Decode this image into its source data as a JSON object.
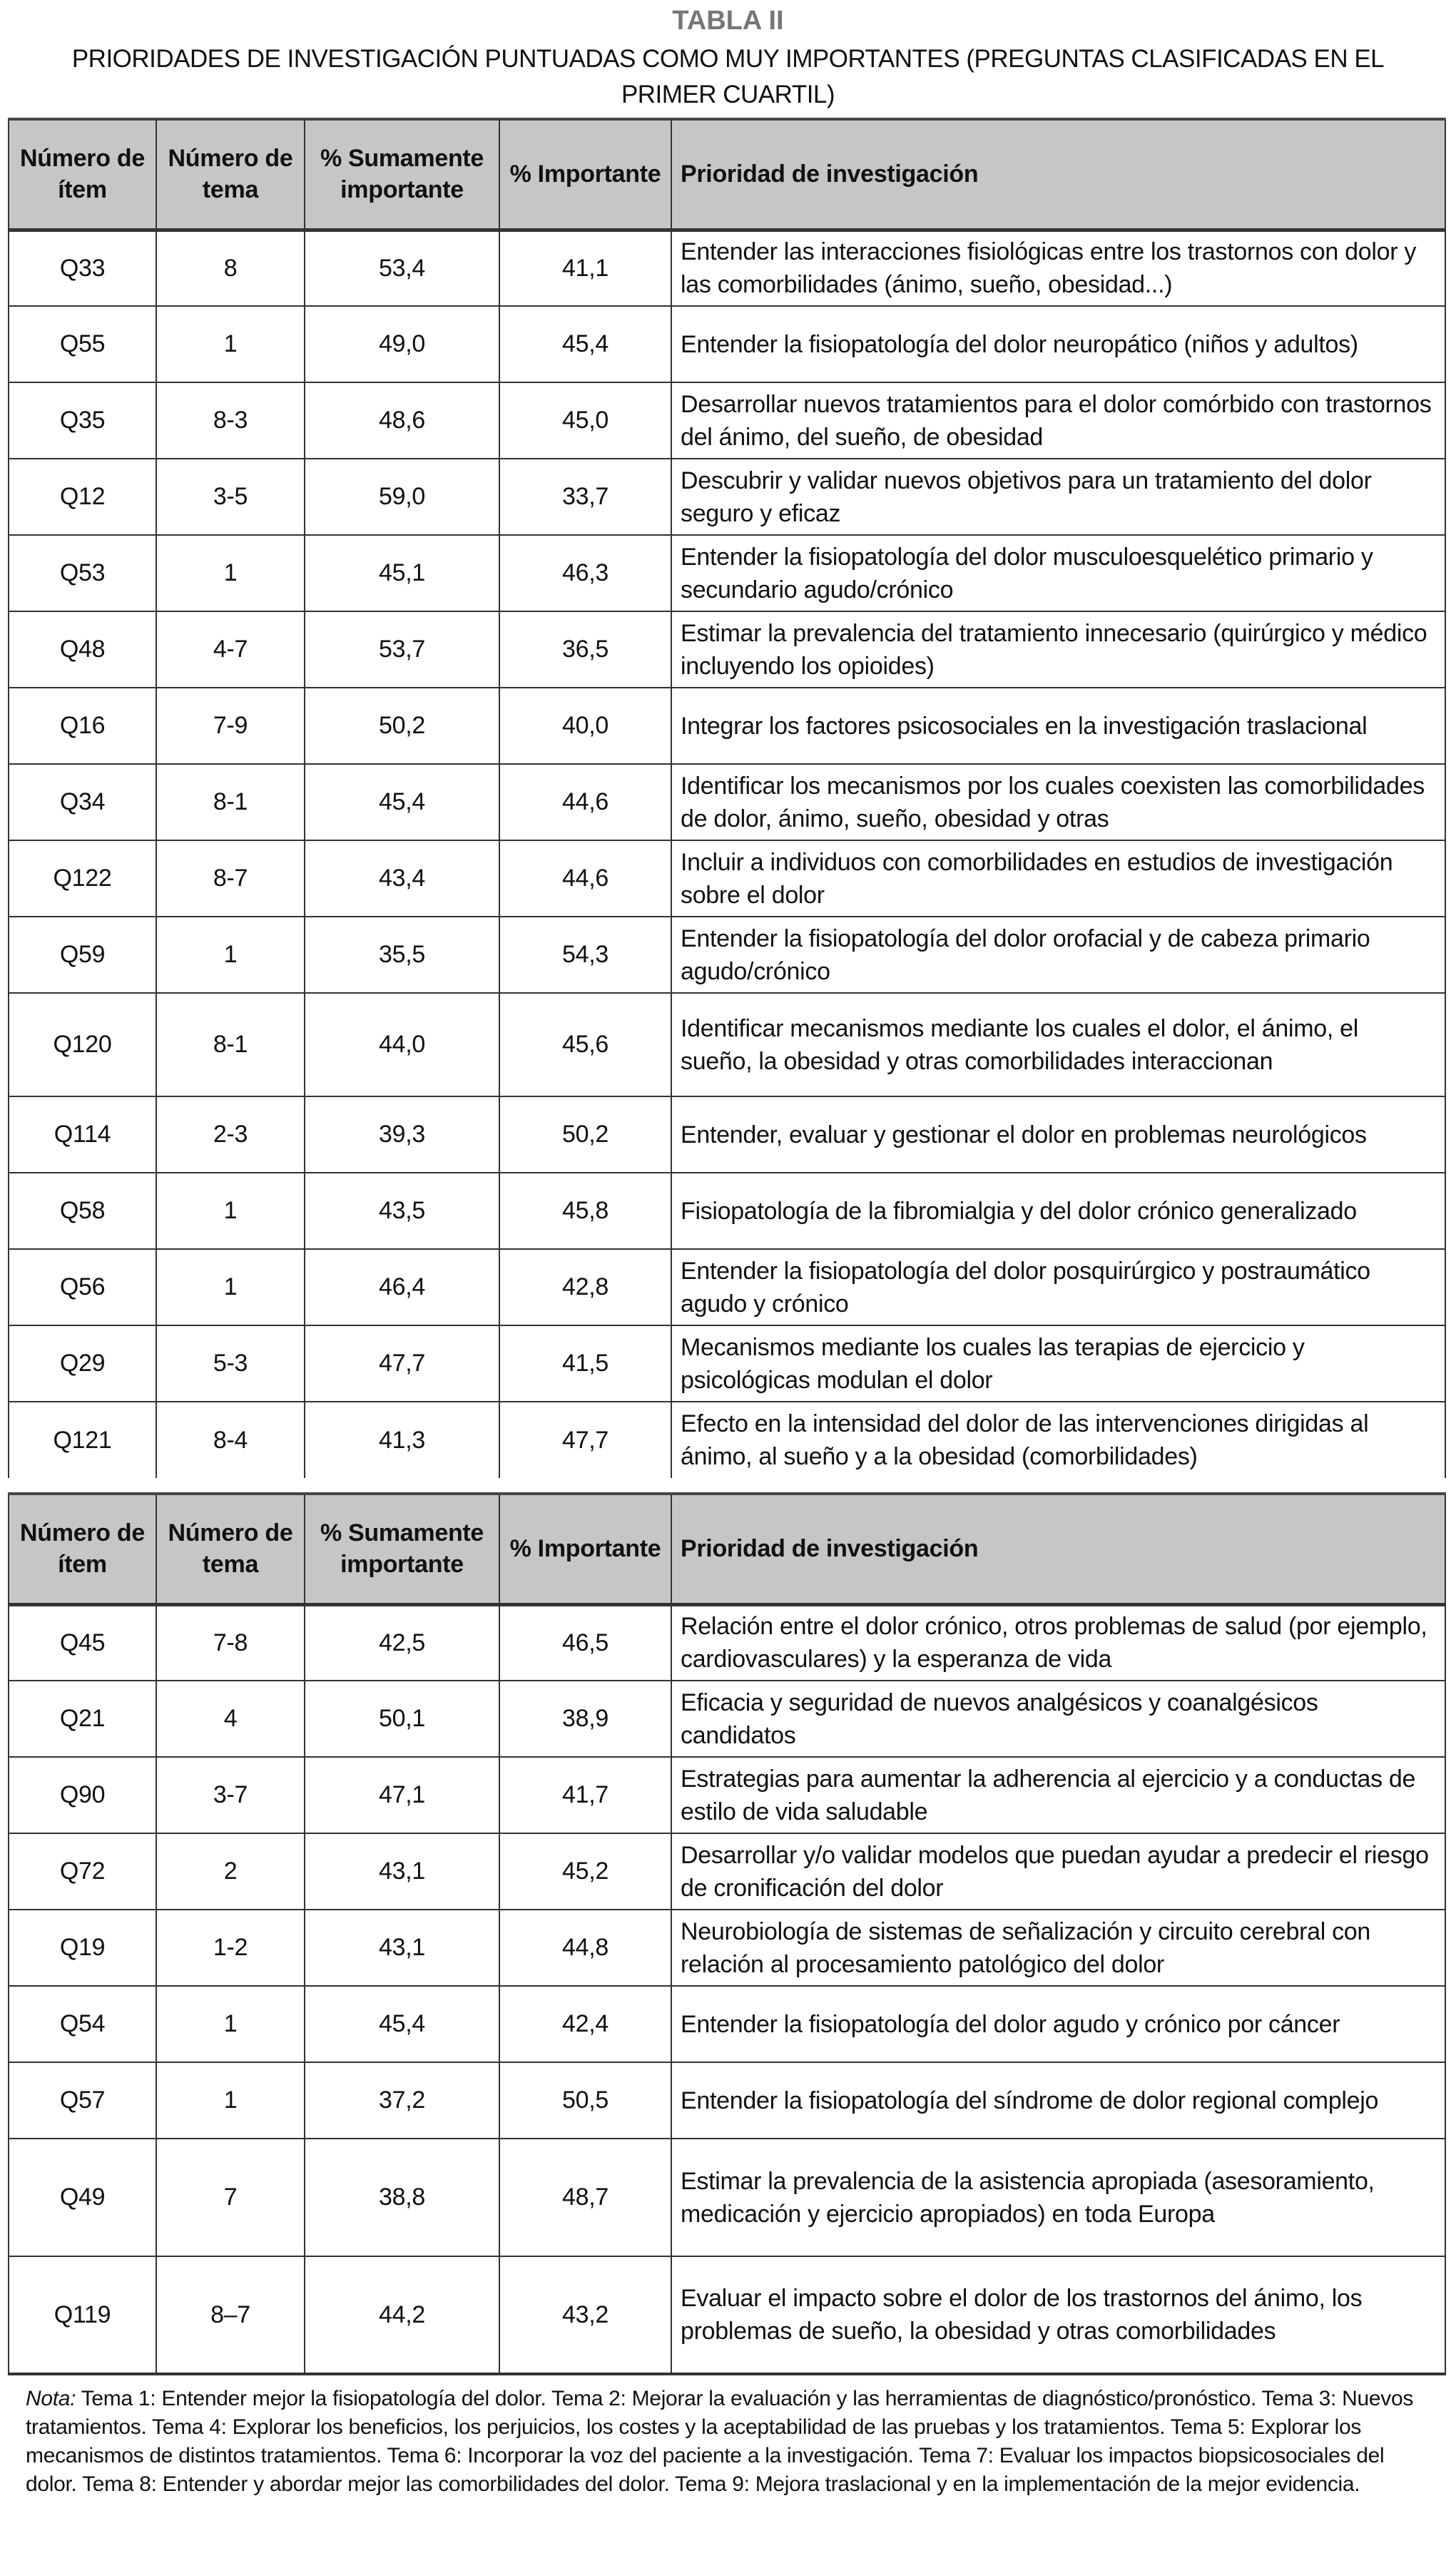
{
  "table_label": "TABLA II",
  "title": "PRIORIDADES DE INVESTIGACIÓN PUNTUADAS COMO MUY IMPORTANTES (PREGUNTAS CLASIFICADAS EN EL PRIMER CUARTIL)",
  "headers": {
    "item": "Número de ítem",
    "tema": "Número de tema",
    "sumamente": "% Sumamente importante",
    "importante": "% Importante",
    "prioridad": "Prioridad de investigación"
  },
  "table1_rows": [
    {
      "item": "Q33",
      "tema": "8",
      "sum": "53,4",
      "imp": "41,1",
      "prio": "Entender las interacciones fisiológicas entre los trastornos con dolor y las comorbilidades (ánimo, sueño, obesidad...)"
    },
    {
      "item": "Q55",
      "tema": "1",
      "sum": "49,0",
      "imp": "45,4",
      "prio": "Entender la fisiopatología del dolor neuropático (niños y adultos)"
    },
    {
      "item": "Q35",
      "tema": "8-3",
      "sum": "48,6",
      "imp": "45,0",
      "prio": "Desarrollar nuevos tratamientos para el dolor comórbido con trastornos del ánimo, del sueño, de obesidad"
    },
    {
      "item": "Q12",
      "tema": "3-5",
      "sum": "59,0",
      "imp": "33,7",
      "prio": "Descubrir y validar nuevos objetivos para un tratamiento del dolor seguro y eficaz"
    },
    {
      "item": "Q53",
      "tema": "1",
      "sum": "45,1",
      "imp": "46,3",
      "prio": "Entender la fisiopatología del dolor musculoesquelético primario y secundario agudo/crónico"
    },
    {
      "item": "Q48",
      "tema": "4-7",
      "sum": "53,7",
      "imp": "36,5",
      "prio": "Estimar la prevalencia del tratamiento innecesario (quirúrgico y médico incluyendo los opioides)"
    },
    {
      "item": "Q16",
      "tema": "7-9",
      "sum": "50,2",
      "imp": "40,0",
      "prio": "Integrar los factores psicosociales en la investigación traslacional"
    },
    {
      "item": "Q34",
      "tema": "8-1",
      "sum": "45,4",
      "imp": "44,6",
      "prio": "Identificar los mecanismos por los cuales coexisten las comorbilidades de dolor, ánimo, sueño, obesidad y otras"
    },
    {
      "item": "Q122",
      "tema": "8-7",
      "sum": "43,4",
      "imp": "44,6",
      "prio": "Incluir a individuos con comorbilidades en estudios de investigación sobre el dolor"
    },
    {
      "item": "Q59",
      "tema": "1",
      "sum": "35,5",
      "imp": "54,3",
      "prio": "Entender la fisiopatología del dolor orofacial y de cabeza primario agudo/crónico"
    },
    {
      "item": "Q120",
      "tema": "8-1",
      "sum": "44,0",
      "imp": "45,6",
      "prio": "Identificar mecanismos mediante los cuales el dolor, el ánimo, el sueño, la obesidad y otras comorbilidades interaccionan"
    },
    {
      "item": "Q114",
      "tema": "2-3",
      "sum": "39,3",
      "imp": "50,2",
      "prio": "Entender, evaluar y gestionar el dolor en problemas neurológicos"
    },
    {
      "item": "Q58",
      "tema": "1",
      "sum": "43,5",
      "imp": "45,8",
      "prio": "Fisiopatología de la fibromialgia y del dolor crónico generalizado"
    },
    {
      "item": "Q56",
      "tema": "1",
      "sum": "46,4",
      "imp": "42,8",
      "prio": "Entender la fisiopatología del dolor posquirúrgico y postraumático agudo y crónico"
    },
    {
      "item": "Q29",
      "tema": "5-3",
      "sum": "47,7",
      "imp": "41,5",
      "prio": "Mecanismos mediante los cuales las terapias de ejercicio y psicológicas modulan el dolor"
    },
    {
      "item": "Q121",
      "tema": "8-4",
      "sum": "41,3",
      "imp": "47,7",
      "prio": "Efecto en la intensidad del dolor de las intervenciones dirigidas al ánimo, al sueño y a la obesidad (comorbilidades)"
    }
  ],
  "table2_rows": [
    {
      "item": "Q45",
      "tema": "7-8",
      "sum": "42,5",
      "imp": "46,5",
      "prio": "Relación entre el dolor crónico, otros problemas de salud (por ejemplo, cardiovasculares) y la esperanza de vida"
    },
    {
      "item": "Q21",
      "tema": "4",
      "sum": "50,1",
      "imp": "38,9",
      "prio": "Eficacia y seguridad de nuevos analgésicos y coanalgésicos candidatos"
    },
    {
      "item": "Q90",
      "tema": "3-7",
      "sum": "47,1",
      "imp": "41,7",
      "prio": "Estrategias para aumentar la adherencia al ejercicio y a conductas de estilo de vida saludable"
    },
    {
      "item": "Q72",
      "tema": "2",
      "sum": "43,1",
      "imp": "45,2",
      "prio": "Desarrollar y/o validar modelos que puedan ayudar a predecir el riesgo de cronificación del dolor"
    },
    {
      "item": "Q19",
      "tema": "1-2",
      "sum": "43,1",
      "imp": "44,8",
      "prio": "Neurobiología de sistemas de señalización y circuito cerebral con relación al procesamiento patológico del dolor"
    },
    {
      "item": "Q54",
      "tema": "1",
      "sum": "45,4",
      "imp": "42,4",
      "prio": "Entender la fisiopatología del dolor agudo y crónico por cáncer"
    },
    {
      "item": "Q57",
      "tema": "1",
      "sum": "37,2",
      "imp": "50,5",
      "prio": "Entender la fisiopatología del síndrome de dolor regional complejo"
    },
    {
      "item": "Q49",
      "tema": "7",
      "sum": "38,8",
      "imp": "48,7",
      "prio": "Estimar la prevalencia de la asistencia apropiada (asesoramiento, medicación y ejercicio apropiados) en toda Europa"
    },
    {
      "item": "Q119",
      "tema": "8–7",
      "sum": "44,2",
      "imp": "43,2",
      "prio": "Evaluar el impacto sobre el dolor de los trastornos del ánimo, los problemas de sueño, la obesidad y otras comorbilidades"
    }
  ],
  "note": {
    "label": "Nota:",
    "text": " Tema 1: Entender mejor la fisiopatología del dolor. Tema 2: Mejorar la evaluación y las herramientas de diagnóstico/pronóstico. Tema 3: Nuevos tratamientos. Tema 4: Explorar los beneficios, los perjuicios, los costes y la aceptabilidad de las pruebas y los tratamientos. Tema 5: Explorar los mecanismos de distintos tratamientos. Tema 6: Incorporar la voz del paciente a la investigación. Tema 7: Evaluar los impactos biopsicosociales del dolor. Tema 8: Entender y abordar mejor las comorbilidades del dolor. Tema 9: Mejora traslacional y en la implementación de la mejor evidencia."
  },
  "colors": {
    "header_bg": "#c6c6c6",
    "label": "#777777",
    "border": "#333333"
  }
}
